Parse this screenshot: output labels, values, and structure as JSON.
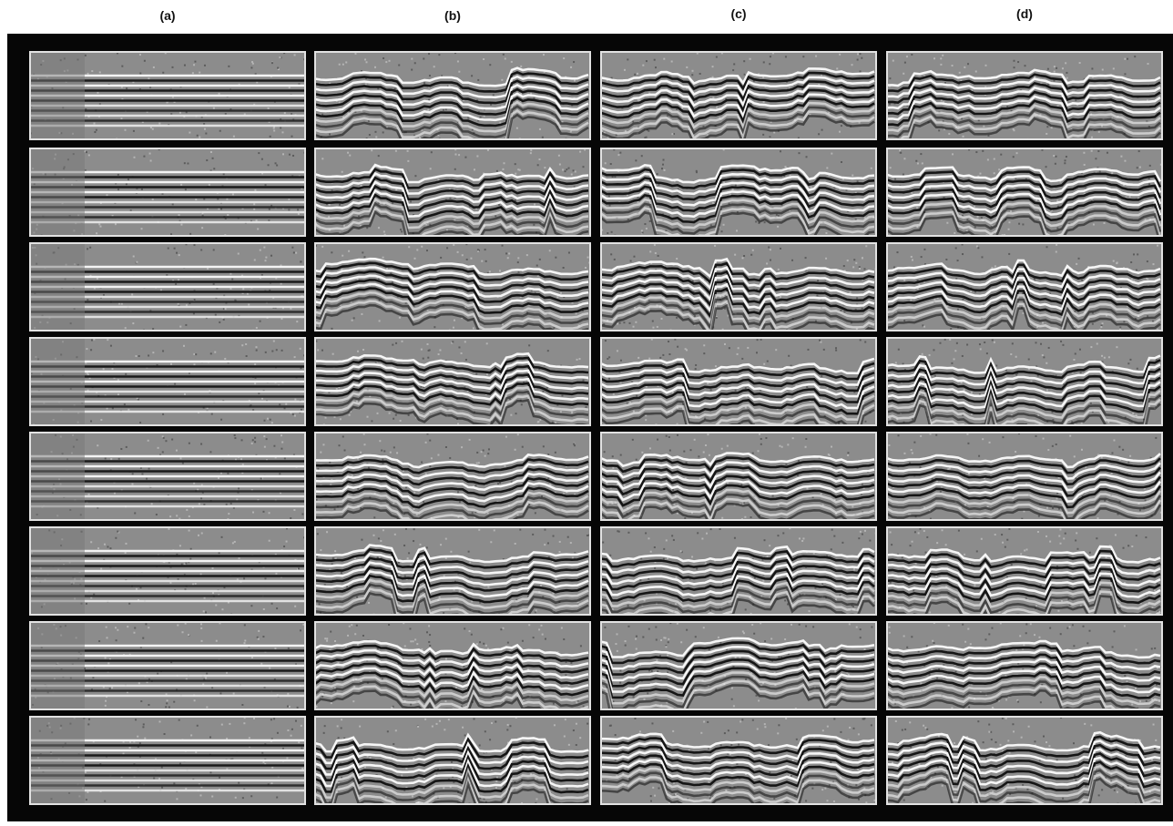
{
  "columns": [
    {
      "label": "(a)"
    },
    {
      "label": "(b)"
    },
    {
      "label": "(c)"
    },
    {
      "label": "(d)"
    }
  ]
}
